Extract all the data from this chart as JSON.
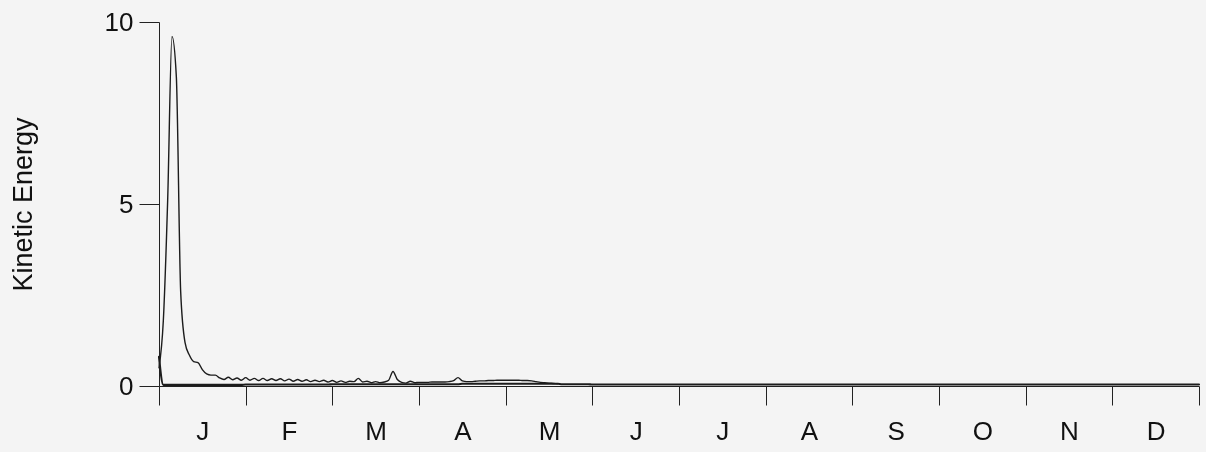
{
  "chart_data": {
    "type": "line",
    "ylabel": "Kinetic Energy",
    "categories": [
      null,
      null,
      null,
      null,
      null,
      null,
      null,
      null,
      null,
      null,
      "J",
      null,
      null,
      null,
      null,
      null,
      null,
      null,
      null,
      null,
      null,
      null,
      null,
      null,
      null,
      null,
      null,
      null,
      null,
      null,
      "F",
      null,
      null,
      null,
      null,
      null,
      null,
      null,
      null,
      null,
      null,
      null,
      null,
      null,
      null,
      null,
      null,
      null,
      null,
      null,
      "M",
      null,
      null,
      null,
      null,
      null,
      null,
      null,
      null,
      null,
      null,
      null,
      null,
      null,
      null,
      null,
      null,
      null,
      null,
      null,
      "A",
      null,
      null,
      null,
      null,
      null,
      null,
      null,
      null,
      null,
      null,
      null,
      null,
      null,
      null,
      null,
      null,
      null,
      null,
      null,
      "M",
      null,
      null,
      null,
      null,
      null,
      null,
      null,
      null,
      null,
      null,
      null,
      null,
      null,
      null,
      null,
      null,
      null,
      null,
      null,
      "J",
      null,
      null,
      null,
      null,
      null,
      null,
      null,
      null,
      null,
      null,
      null,
      null,
      null,
      null,
      null,
      null,
      null,
      null,
      null,
      "J",
      null,
      null,
      null,
      null,
      null,
      null,
      null,
      null,
      null,
      null,
      null,
      null,
      null,
      null,
      null,
      null,
      null,
      null,
      null,
      "A",
      null,
      null,
      null,
      null,
      null,
      null,
      null,
      null,
      null,
      null,
      null,
      null,
      null,
      null,
      null,
      null,
      null,
      null,
      null,
      "S",
      null,
      null,
      null,
      null,
      null,
      null,
      null,
      null,
      null,
      null,
      null,
      null,
      null,
      null,
      null,
      null,
      null,
      null,
      null,
      "O",
      null,
      null,
      null,
      null,
      null,
      null,
      null,
      null,
      null,
      null,
      null,
      null,
      null,
      null,
      null,
      null,
      null,
      null,
      null,
      "N",
      null,
      null,
      null,
      null,
      null,
      null,
      null,
      null,
      null,
      null,
      null,
      null,
      null,
      null,
      null,
      null,
      null,
      null,
      null,
      "D",
      null,
      null,
      null,
      null,
      null,
      null,
      null,
      null,
      null,
      null
    ],
    "ylim": [
      0,
      10
    ],
    "yticks": [
      0,
      5,
      10
    ],
    "series": [
      {
        "color": "#1c1c1c",
        "values": [
          0.5,
          1.8,
          5.1,
          9.6,
          8.5,
          2.6,
          1.2,
          0.85,
          0.67,
          0.64,
          0.45,
          0.33,
          0.3,
          0.3,
          0.22,
          0.18,
          0.24,
          0.17,
          0.22,
          0.16,
          0.23,
          0.16,
          0.21,
          0.15,
          0.21,
          0.15,
          0.2,
          0.15,
          0.2,
          0.14,
          0.19,
          0.13,
          0.18,
          0.13,
          0.17,
          0.12,
          0.16,
          0.12,
          0.16,
          0.11,
          0.15,
          0.1,
          0.14,
          0.1,
          0.13,
          0.12,
          0.21,
          0.11,
          0.13,
          0.09,
          0.12,
          0.09,
          0.11,
          0.16,
          0.4,
          0.18,
          0.1,
          0.08,
          0.13,
          0.09,
          0.1,
          0.1,
          0.1,
          0.11,
          0.11,
          0.11,
          0.11,
          0.12,
          0.15,
          0.23,
          0.14,
          0.12,
          0.12,
          0.13,
          0.14,
          0.14,
          0.15,
          0.15,
          0.16,
          0.16,
          0.16,
          0.16,
          0.16,
          0.16,
          0.15,
          0.15,
          0.14,
          0.12,
          0.1,
          0.09,
          0.08,
          0.07,
          0.06,
          null,
          null,
          null,
          null,
          null,
          null,
          null,
          null,
          null,
          null,
          null,
          null,
          null,
          null,
          null,
          null,
          null,
          null,
          null,
          null,
          null,
          null,
          null,
          null,
          null,
          null,
          null,
          null,
          null,
          null,
          null,
          null,
          null,
          null,
          null,
          null,
          null,
          null,
          null,
          null,
          null,
          null,
          null,
          null,
          null,
          null,
          null,
          null,
          null,
          null,
          null,
          null,
          null,
          null,
          null,
          null,
          null,
          null,
          null,
          null,
          null,
          null,
          null,
          null,
          null,
          null,
          null,
          null,
          null,
          null,
          null,
          null,
          null,
          null,
          null,
          null,
          null,
          null,
          null,
          null,
          null,
          null,
          null,
          null,
          null,
          null,
          null,
          null,
          null,
          null,
          null,
          null,
          null,
          null,
          null,
          null,
          null,
          null,
          null,
          null,
          null,
          null,
          null,
          null,
          null,
          null,
          null,
          null,
          null,
          null,
          null,
          null,
          null,
          null,
          null,
          null,
          null,
          null,
          null,
          null,
          null,
          null,
          null,
          null,
          null,
          null,
          null,
          null,
          null,
          null,
          null,
          null,
          null,
          null,
          null,
          null,
          null,
          null,
          null,
          null,
          null,
          null,
          null,
          null,
          null,
          null,
          null,
          null
        ]
      },
      {
        "color": "#1c1c1c",
        "values": [
          0.8,
          0.03,
          0.03,
          0.03,
          0.03,
          0.03,
          0.03,
          0.03,
          0.03,
          0.03,
          0.03,
          0.03,
          0.03,
          0.03,
          0.03,
          0.03,
          0.03,
          0.03,
          0.03,
          0.03,
          0.04,
          0.04,
          0.04,
          0.04,
          0.04,
          0.04,
          0.04,
          0.04,
          0.04,
          0.04,
          0.04,
          0.04,
          0.04,
          0.04,
          0.04,
          0.04,
          0.04,
          0.04,
          0.04,
          0.04,
          0.05,
          0.05,
          0.05,
          0.05,
          0.05,
          0.05,
          0.05,
          0.05,
          0.05,
          0.05,
          0.05,
          0.05,
          0.05,
          0.05,
          0.05,
          0.05,
          0.05,
          0.05,
          0.05,
          0.05,
          0.05,
          0.05,
          0.05,
          0.05,
          0.05,
          0.05,
          0.05,
          0.05,
          0.05,
          0.05,
          0.06,
          0.06,
          0.06,
          0.06,
          0.06,
          0.06,
          0.06,
          0.06,
          0.06,
          0.06,
          0.06,
          0.06,
          0.06,
          0.06,
          0.06,
          0.06,
          0.06,
          0.06,
          0.06,
          0.06,
          0.06,
          0.06,
          0.06,
          0.05,
          0.05,
          0.05,
          0.05,
          0.05,
          0.05,
          0.05,
          0.04,
          0.04,
          0.04,
          0.04,
          0.04,
          0.04,
          0.04,
          0.04,
          0.04,
          0.04,
          0.04,
          0.04,
          0.04,
          0.04,
          0.04,
          0.04,
          0.04,
          0.04,
          0.04,
          0.04,
          0.04,
          0.04,
          0.04,
          0.04,
          0.04,
          0.04,
          0.04,
          0.04,
          0.04,
          0.04,
          0.04,
          0.04,
          0.04,
          0.04,
          0.04,
          0.04,
          0.04,
          0.04,
          0.04,
          0.04,
          0.04,
          0.04,
          0.04,
          0.04,
          0.04,
          0.04,
          0.04,
          0.04,
          0.04,
          0.04,
          0.04,
          0.04,
          0.04,
          0.04,
          0.04,
          0.04,
          0.04,
          0.04,
          0.04,
          0.04,
          0.04,
          0.04,
          0.04,
          0.04,
          0.04,
          0.04,
          0.04,
          0.04,
          0.04,
          0.04,
          0.04,
          0.04,
          0.04,
          0.04,
          0.04,
          0.04,
          0.04,
          0.04,
          0.04,
          0.04,
          0.04,
          0.04,
          0.04,
          0.04,
          0.04,
          0.04,
          0.04,
          0.04,
          0.04,
          0.04,
          0.04,
          0.04,
          0.04,
          0.04,
          0.04,
          0.04,
          0.04,
          0.04,
          0.04,
          0.04,
          0.04,
          0.04,
          0.04,
          0.04,
          0.04,
          0.04,
          0.04,
          0.04,
          0.04,
          0.04,
          0.04,
          0.04,
          0.04,
          0.04,
          0.04,
          0.04,
          0.04,
          0.04,
          0.04,
          0.04,
          0.04,
          0.04,
          0.04,
          0.04,
          0.04,
          0.04,
          0.04,
          0.04,
          0.04,
          0.04,
          0.04,
          0.04,
          0.04,
          0.04,
          0.04,
          0.04,
          0.04,
          0.04,
          0.04,
          0.04,
          0.04
        ]
      }
    ]
  }
}
